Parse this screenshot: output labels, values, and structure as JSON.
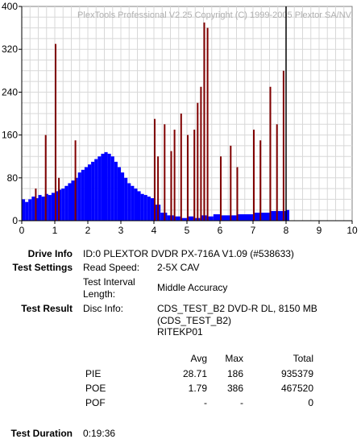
{
  "chart_data": {
    "type": "bar",
    "watermark": "PlexTools Professional V2.25 Copyright (C) 1999-2005 Plextor SA/NV",
    "xlim": [
      0,
      10
    ],
    "ylim": [
      0,
      400
    ],
    "xticks": [
      "0",
      "1",
      "2",
      "3",
      "4",
      "5",
      "6",
      "7",
      "8",
      "9",
      "10"
    ],
    "yticks": [
      "0",
      "80",
      "160",
      "240",
      "320",
      "400"
    ],
    "grid": true,
    "end_marker_x": 8.0,
    "series": [
      {
        "color": "#0000ff",
        "description": "blue PIE distribution",
        "x": [
          0.0,
          0.1,
          0.2,
          0.3,
          0.4,
          0.5,
          0.6,
          0.7,
          0.8,
          0.9,
          1.0,
          1.1,
          1.2,
          1.3,
          1.4,
          1.5,
          1.6,
          1.7,
          1.8,
          1.9,
          2.0,
          2.1,
          2.2,
          2.3,
          2.4,
          2.5,
          2.6,
          2.7,
          2.8,
          2.9,
          3.0,
          3.1,
          3.2,
          3.3,
          3.4,
          3.5,
          3.6,
          3.7,
          3.8,
          3.9,
          4.0,
          4.2,
          4.4,
          4.6,
          4.8,
          5.0,
          5.2,
          5.4,
          5.6,
          5.8,
          6.0,
          6.5,
          7.0,
          7.5,
          8.0
        ],
        "y": [
          40,
          35,
          40,
          45,
          42,
          48,
          45,
          50,
          48,
          52,
          55,
          58,
          60,
          65,
          70,
          75,
          80,
          90,
          95,
          100,
          105,
          110,
          115,
          120,
          125,
          128,
          125,
          120,
          110,
          100,
          90,
          80,
          70,
          65,
          60,
          55,
          50,
          48,
          45,
          42,
          30,
          15,
          10,
          8,
          5,
          8,
          5,
          10,
          8,
          12,
          10,
          12,
          15,
          18,
          20
        ]
      },
      {
        "color": "#800000",
        "description": "dark red POE spikes",
        "x": [
          0.4,
          0.7,
          1.0,
          1.1,
          1.6,
          4.0,
          4.1,
          4.3,
          4.5,
          4.6,
          4.8,
          5.0,
          5.2,
          5.3,
          5.4,
          5.5,
          5.6,
          6.0,
          6.3,
          6.5,
          7.0,
          7.2,
          7.5,
          7.7,
          7.9
        ],
        "y": [
          60,
          160,
          330,
          80,
          150,
          190,
          120,
          180,
          130,
          170,
          200,
          160,
          170,
          220,
          250,
          370,
          360,
          120,
          140,
          100,
          170,
          150,
          250,
          180,
          280
        ]
      }
    ]
  },
  "info": {
    "drive_info_label": "Drive Info",
    "drive_info_value": "ID:0 PLEXTOR DVDR PX-716A V1.09 (#538633)",
    "test_settings_label": "Test Settings",
    "read_speed_label": "Read Speed:",
    "read_speed_value": "2-5X CAV",
    "interval_label_1": "Test Interval",
    "interval_label_2": "Length:",
    "interval_value": "Middle Accuracy",
    "test_result_label": "Test Result",
    "disc_info_label": "Disc Info:",
    "disc_info_line1": "CDS_TEST_B2 DVD-R DL, 8150 MB",
    "disc_info_line2": "(CDS_TEST_B2)",
    "disc_info_line3": "RITEKP01",
    "test_duration_label": "Test Duration",
    "test_duration_value": "0:19:36"
  },
  "stats": {
    "headers": [
      "Avg",
      "Max",
      "Total"
    ],
    "rows": [
      {
        "name": "PIE",
        "avg": "28.71",
        "max": "186",
        "total": "935379"
      },
      {
        "name": "POE",
        "avg": "1.79",
        "max": "386",
        "total": "467520"
      },
      {
        "name": "POF",
        "avg": "-",
        "max": "-",
        "total": "0"
      }
    ]
  }
}
